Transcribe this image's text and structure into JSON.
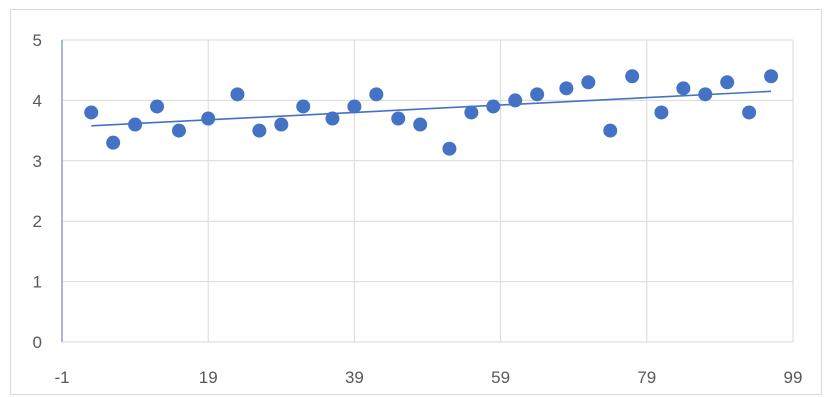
{
  "chart_data": {
    "type": "scatter",
    "title": "",
    "xlabel": "",
    "ylabel": "",
    "xlim": [
      -1,
      99
    ],
    "ylim": [
      0,
      5
    ],
    "x_ticks": [
      -1,
      19,
      39,
      59,
      79,
      99
    ],
    "y_ticks": [
      0,
      1,
      2,
      3,
      4,
      5
    ],
    "x_tick_labels": [
      "-1",
      "19",
      "39",
      "59",
      "79",
      "99"
    ],
    "y_tick_labels": [
      "0",
      "1",
      "2",
      "3",
      "4",
      "5"
    ],
    "grid": true,
    "legend": "none",
    "colors": {
      "marker": "#4472c4",
      "trendline": "#4472c4",
      "grid": "#d9d9d9",
      "y_axis_line": "#a9b7dd",
      "text": "#595959"
    },
    "series": [
      {
        "points": [
          {
            "x": 3,
            "y": 3.8
          },
          {
            "x": 6,
            "y": 3.3
          },
          {
            "x": 9,
            "y": 3.6
          },
          {
            "x": 12,
            "y": 3.9
          },
          {
            "x": 15,
            "y": 3.5
          },
          {
            "x": 19,
            "y": 3.7
          },
          {
            "x": 23,
            "y": 4.1
          },
          {
            "x": 26,
            "y": 3.5
          },
          {
            "x": 29,
            "y": 3.6
          },
          {
            "x": 32,
            "y": 3.9
          },
          {
            "x": 36,
            "y": 3.7
          },
          {
            "x": 39,
            "y": 3.9
          },
          {
            "x": 42,
            "y": 4.1
          },
          {
            "x": 45,
            "y": 3.7
          },
          {
            "x": 48,
            "y": 3.6
          },
          {
            "x": 52,
            "y": 3.2
          },
          {
            "x": 55,
            "y": 3.8
          },
          {
            "x": 58,
            "y": 3.9
          },
          {
            "x": 61,
            "y": 4.0
          },
          {
            "x": 64,
            "y": 4.1
          },
          {
            "x": 68,
            "y": 4.2
          },
          {
            "x": 71,
            "y": 4.3
          },
          {
            "x": 74,
            "y": 3.5
          },
          {
            "x": 77,
            "y": 4.4
          },
          {
            "x": 81,
            "y": 3.8
          },
          {
            "x": 84,
            "y": 4.2
          },
          {
            "x": 87,
            "y": 4.1
          },
          {
            "x": 90,
            "y": 4.3
          },
          {
            "x": 93,
            "y": 3.8
          },
          {
            "x": 96,
            "y": 4.4
          }
        ]
      }
    ],
    "trendline": {
      "type": "linear",
      "x_start": 3,
      "y_start": 3.58,
      "x_end": 96,
      "y_end": 4.15
    }
  }
}
